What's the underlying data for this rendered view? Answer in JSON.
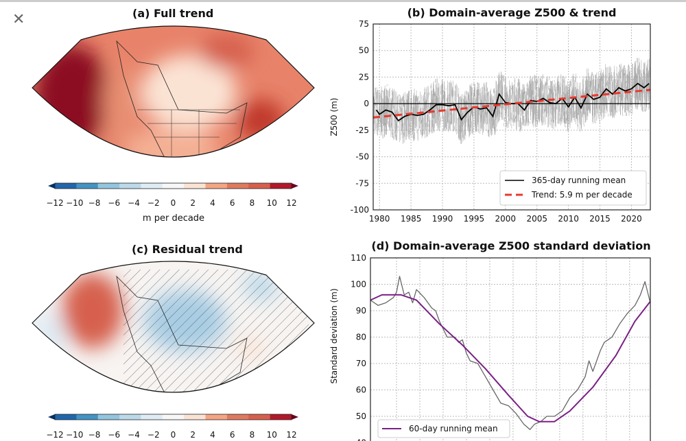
{
  "viewer": {
    "close_icon": "close-icon"
  },
  "panel_a": {
    "title": "(a) Full trend",
    "colorbar_label": "m per decade"
  },
  "panel_c": {
    "title": "(c) Residual trend"
  },
  "colorbar": {
    "ticks": [
      "−12",
      "−10",
      "−8",
      "−6",
      "−4",
      "−2",
      "0",
      "2",
      "4",
      "6",
      "8",
      "10",
      "12"
    ],
    "colors": [
      "#053061",
      "#2166ac",
      "#4393c3",
      "#92c5de",
      "#bcd9ea",
      "#e0ecf4",
      "#f7f7f7",
      "#fbe3d4",
      "#f4a582",
      "#e07a5f",
      "#d6604d",
      "#b2182b",
      "#67001f"
    ]
  },
  "chart_data": [
    {
      "type": "line",
      "title": "(b) Domain-average Z500 & trend",
      "xlabel": "",
      "ylabel": "Z500 (m)",
      "xlim": [
        1979,
        2023
      ],
      "ylim": [
        -100,
        75
      ],
      "xticks": [
        1980,
        1985,
        1990,
        1995,
        2000,
        2005,
        2010,
        2015,
        2020
      ],
      "yticks": [
        -100,
        -75,
        -50,
        -25,
        0,
        25,
        50,
        75
      ],
      "grid": true,
      "legend": "bottom-right",
      "series": [
        {
          "name": "365-day running mean",
          "color": "#000000",
          "x": [
            1979.5,
            1980,
            1981,
            1982,
            1983,
            1984,
            1985,
            1986,
            1987,
            1988,
            1989,
            1990,
            1991,
            1992,
            1993,
            1994,
            1995,
            1996,
            1997,
            1998,
            1999,
            2000,
            2001,
            2002,
            2003,
            2004,
            2005,
            2006,
            2007,
            2008,
            2009,
            2010,
            2011,
            2012,
            2013,
            2014,
            2015,
            2016,
            2017,
            2018,
            2019,
            2020,
            2021,
            2022,
            2022.8
          ],
          "y": [
            -6,
            -10,
            -6,
            -8,
            -16,
            -12,
            -10,
            -11,
            -10,
            -6,
            -1,
            -1,
            -2,
            -1,
            -15,
            -8,
            -3,
            -5,
            -4,
            -12,
            9,
            1,
            0,
            0,
            -6,
            3,
            2,
            5,
            1,
            0,
            5,
            -3,
            6,
            -4,
            9,
            4,
            6,
            14,
            9,
            15,
            12,
            14,
            19,
            15,
            19
          ]
        },
        {
          "name": "Trend: 5.9 m per decade",
          "color": "#e8392d",
          "style": "dashed",
          "x": [
            1979,
            2023
          ],
          "y": [
            -13,
            13
          ]
        }
      ]
    },
    {
      "type": "line",
      "title": "(d) Domain-average Z500 standard deviation",
      "xlabel": "",
      "ylabel": "Standard deviation (m)",
      "xlim": [
        0,
        365
      ],
      "ylim": [
        40,
        110
      ],
      "yticks": [
        40,
        50,
        60,
        70,
        80,
        90,
        100,
        110
      ],
      "grid": true,
      "legend": "bottom-left",
      "series": [
        {
          "color": "#666666",
          "x": [
            0,
            10,
            20,
            30,
            34,
            38,
            44,
            50,
            55,
            60,
            70,
            80,
            85,
            90,
            95,
            100,
            110,
            115,
            120,
            125,
            130,
            140,
            150,
            160,
            170,
            180,
            190,
            200,
            208,
            214,
            222,
            230,
            240,
            250,
            260,
            270,
            280,
            285,
            290,
            300,
            305,
            315,
            325,
            335,
            345,
            352,
            358,
            365
          ],
          "y": [
            94,
            92,
            93,
            95,
            97,
            103,
            96,
            97,
            93,
            98,
            95,
            91,
            90,
            86,
            83,
            80,
            80,
            78,
            79,
            74,
            71,
            70,
            65,
            60,
            55,
            54,
            51,
            47,
            45,
            47,
            48,
            50,
            50,
            52,
            57,
            60,
            65,
            71,
            67,
            75,
            78,
            80,
            85,
            89,
            92,
            96,
            101,
            93
          ]
        },
        {
          "name": "60-day running mean",
          "color": "#7b1f86",
          "x": [
            0,
            15,
            40,
            60,
            90,
            120,
            150,
            180,
            205,
            220,
            240,
            260,
            290,
            320,
            345,
            365
          ],
          "y": [
            94,
            96,
            96,
            94,
            85,
            77,
            68,
            58,
            50,
            48,
            48,
            52,
            61,
            73,
            86,
            93.5
          ]
        }
      ]
    }
  ]
}
